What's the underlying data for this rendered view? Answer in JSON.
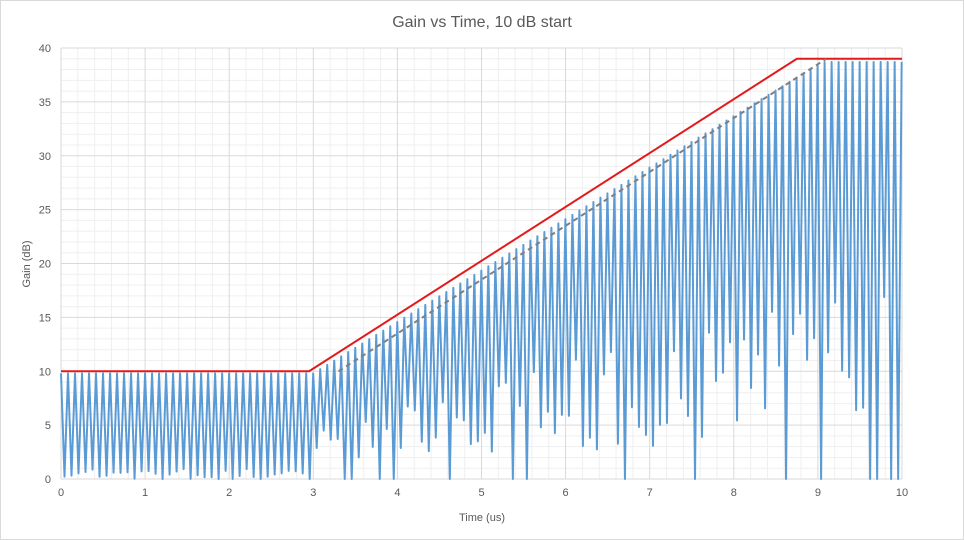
{
  "chart_data": {
    "type": "line",
    "title": "Gain vs Time, 10 dB start",
    "xlabel": "Time (us)",
    "ylabel": "Gain (dB)",
    "xlim": [
      0,
      10
    ],
    "ylim": [
      0,
      40
    ],
    "x_ticks": [
      "0",
      "1",
      "2",
      "3",
      "4",
      "5",
      "6",
      "7",
      "8",
      "9",
      "10"
    ],
    "y_ticks": [
      "0",
      "5",
      "10",
      "15",
      "20",
      "25",
      "30",
      "35",
      "40"
    ],
    "grid": "major and minor",
    "legend": "none",
    "series": [
      {
        "style": "oscillating",
        "color": "#5b9bd5",
        "envelope_peak": {
          "x": [
            0,
            3,
            9.05,
            10
          ],
          "y": [
            9.8,
            9.8,
            38.7,
            38.7
          ]
        },
        "oscillation_period": 0.0833,
        "minima_approx": [
          0,
          0,
          0,
          0.5,
          2,
          4,
          8,
          10,
          14,
          18,
          20,
          24,
          26
        ]
      },
      {
        "style": "solid",
        "color": "#e31a1c",
        "x": [
          0,
          2.95,
          8.75,
          10
        ],
        "y": [
          10,
          10,
          39,
          39
        ]
      },
      {
        "style": "dashed",
        "color": "#7f7f7f",
        "x": [
          3.3,
          9.1
        ],
        "y": [
          10,
          39
        ]
      }
    ]
  }
}
